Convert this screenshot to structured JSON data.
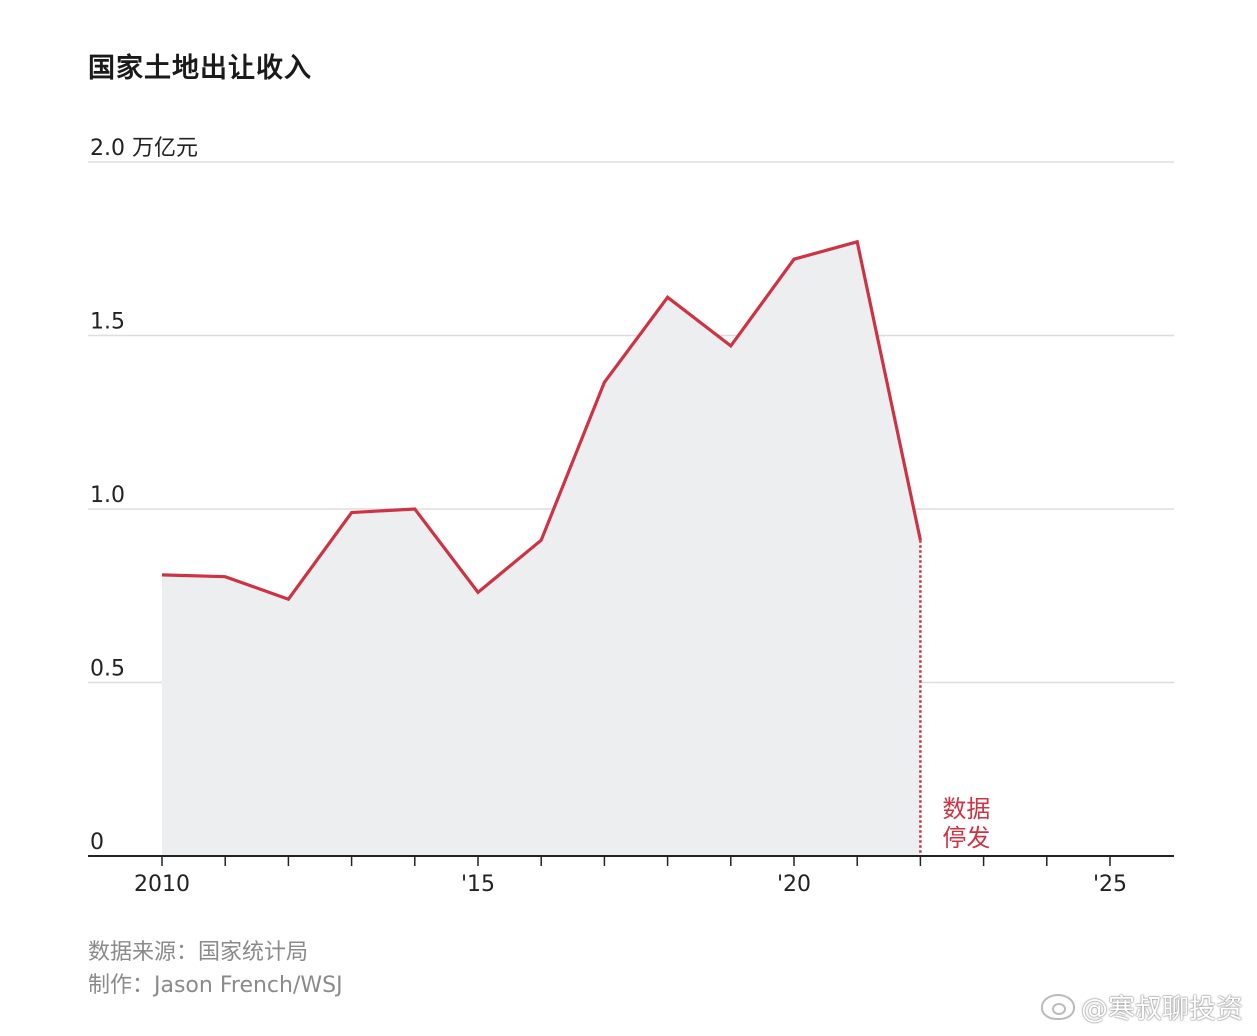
{
  "title": "国家土地出让收入",
  "source_line1": "数据来源：国家统计局",
  "source_line2": "制作：Jason French/WSJ",
  "watermark": "@寒叔聊投资",
  "chart_data": {
    "type": "area",
    "title": "国家土地出让收入",
    "ylabel": "万亿元",
    "unit_label": "2.0 万亿元",
    "x": [
      2010,
      2011,
      2012,
      2013,
      2014,
      2015,
      2016,
      2017,
      2018,
      2019,
      2020,
      2021,
      2022
    ],
    "values": [
      0.81,
      0.805,
      0.74,
      0.99,
      1.0,
      0.76,
      0.91,
      1.365,
      1.61,
      1.47,
      1.72,
      1.77,
      0.91
    ],
    "xlim": [
      2009,
      2026
    ],
    "ylim": [
      0,
      2.0
    ],
    "yticks": [
      0,
      0.5,
      1.0,
      1.5,
      2.0
    ],
    "ytick_labels": [
      "0",
      "0.5",
      "1.0",
      "1.5",
      "2.0 万亿元"
    ],
    "xticks_major": [
      2010,
      2015,
      2020,
      2025
    ],
    "xtick_labels": [
      "2010",
      "'15",
      "'20",
      "'25"
    ],
    "annotation": {
      "x": 2022,
      "text_line1": "数据",
      "text_line2": "停发"
    },
    "colors": {
      "line": "#cc3344",
      "area": "#edeef0",
      "grid": "#dddddd",
      "axis": "#222222"
    },
    "grid": true
  }
}
